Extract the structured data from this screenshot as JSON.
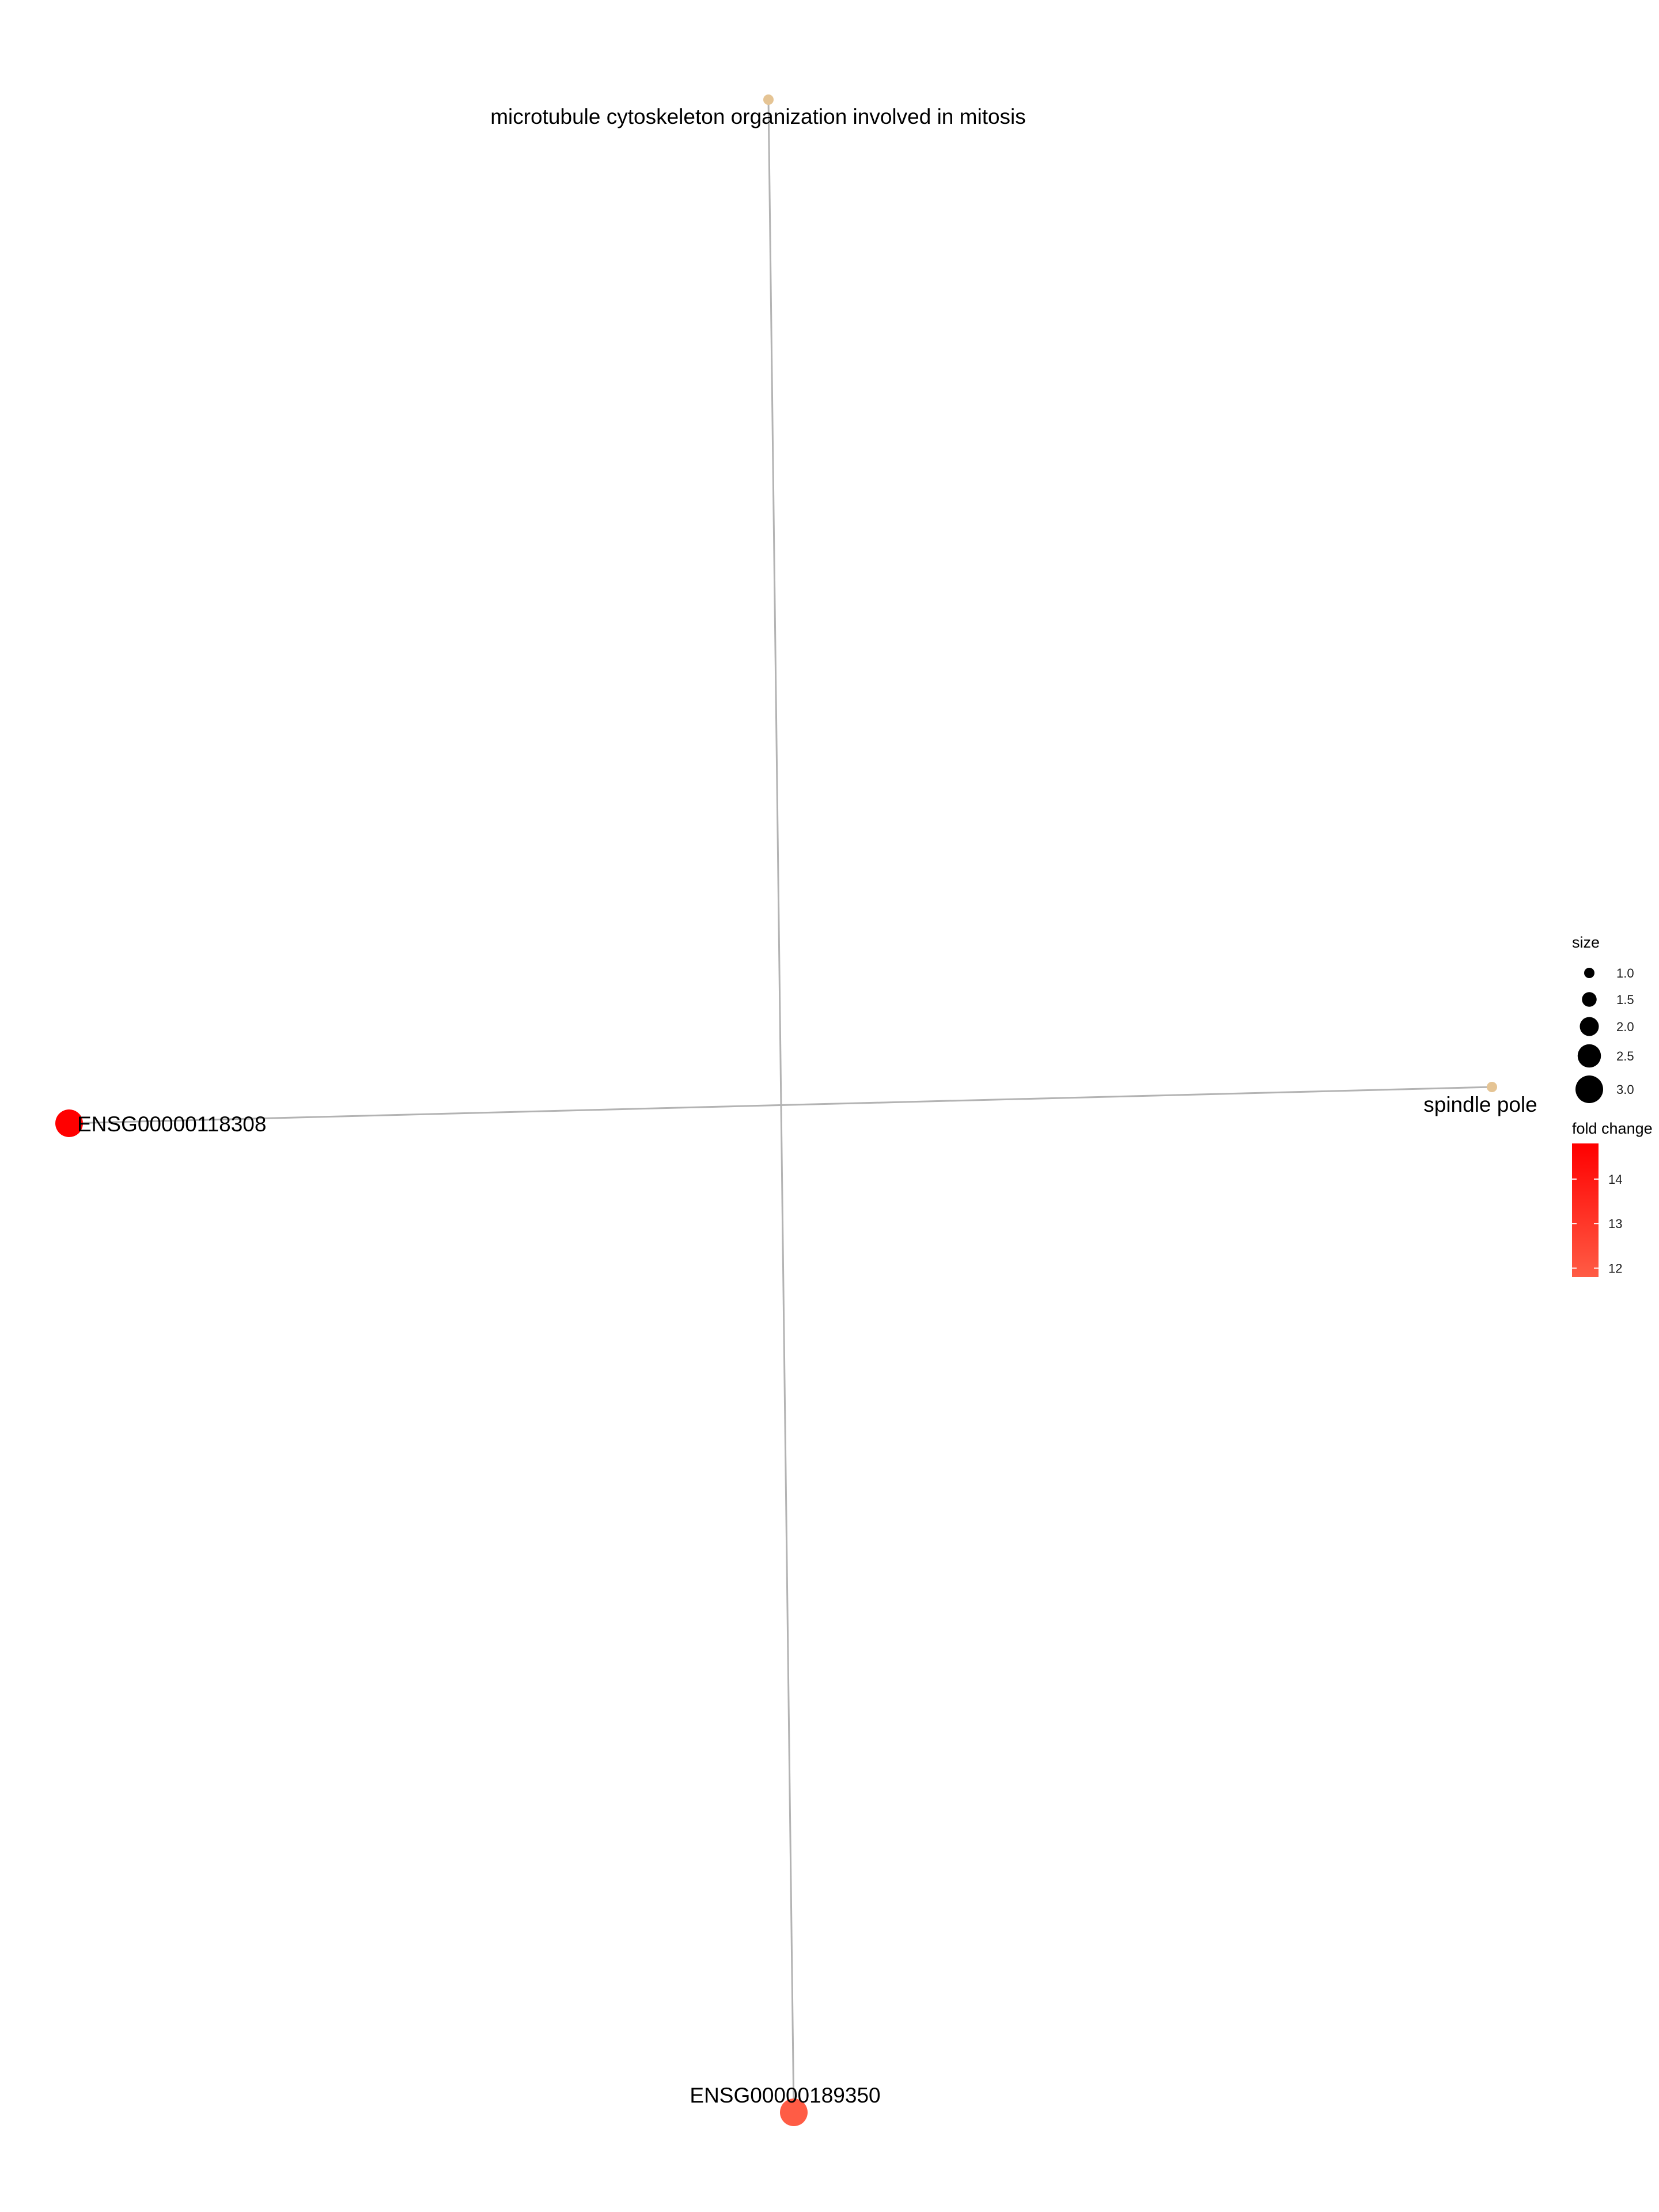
{
  "network": {
    "nodes": [
      {
        "id": "go_mtc",
        "label": "microtubule cytoskeleton organization involved in mitosis",
        "kind": "category",
        "size": 1,
        "color": "#E5C494"
      },
      {
        "id": "go_sp",
        "label": "spindle pole",
        "kind": "category",
        "size": 1,
        "color": "#E5C494"
      },
      {
        "id": "gene_118308",
        "label": "ENSG00000118308",
        "kind": "gene",
        "size": 3,
        "fold_change": 14.8
      },
      {
        "id": "gene_189350",
        "label": "ENSG00000189350",
        "kind": "gene",
        "size": 3,
        "fold_change": 11.8
      }
    ],
    "edges": [
      {
        "from": "go_mtc",
        "to": "gene_189350"
      },
      {
        "from": "go_sp",
        "to": "gene_118308"
      }
    ],
    "edge_color": "#B3B3B3"
  },
  "legend": {
    "size": {
      "title": "size",
      "entries": [
        {
          "value": 1.0,
          "label": "1.0"
        },
        {
          "value": 1.5,
          "label": "1.5"
        },
        {
          "value": 2.0,
          "label": "2.0"
        },
        {
          "value": 2.5,
          "label": "2.5"
        },
        {
          "value": 3.0,
          "label": "3.0"
        }
      ]
    },
    "fold_change": {
      "title": "fold change",
      "min": 11.8,
      "max": 14.8,
      "low_color": "#FF5C45",
      "high_color": "#FF0000",
      "ticks": [
        {
          "value": 14,
          "label": "14"
        },
        {
          "value": 13,
          "label": "13"
        },
        {
          "value": 12,
          "label": "12"
        }
      ]
    }
  }
}
